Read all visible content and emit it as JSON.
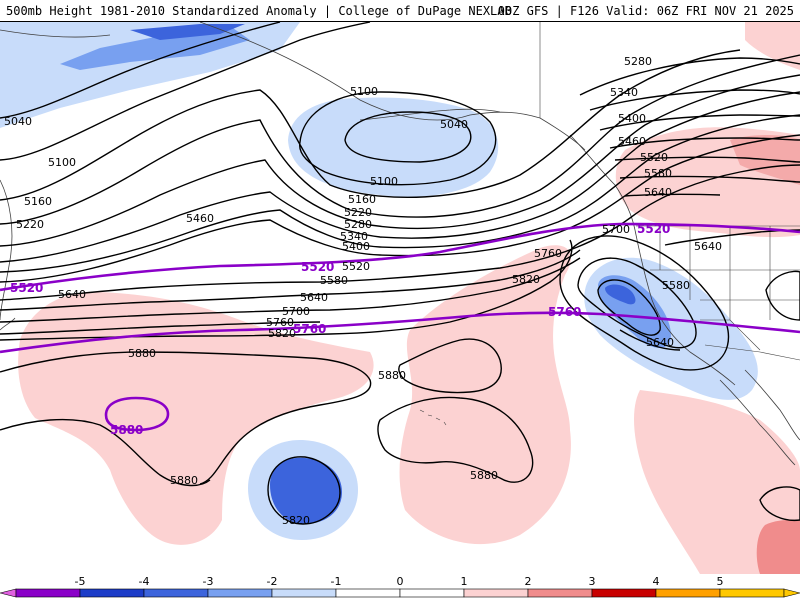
{
  "header": {
    "left_title": "500mb Height 1981-2010 Standardized Anomaly | College of DuPage NEXLAB",
    "right_title": "00Z GFS | F126 Valid: 06Z FRI NOV 21 2025"
  },
  "contour_labels": {
    "c5040_west": "5040",
    "c5040_gulf": "5040",
    "c5100_west": "5100",
    "c5100_gulf_n": "5100",
    "c5100_gulf_s": "5100",
    "c5160_west": "5160",
    "c5160_mid": "5160",
    "c5220_west": "5220",
    "c5220_mid": "5220",
    "c5280_mid": "5280",
    "c5280_ne": "5280",
    "c5340_mid": "5340",
    "c5340_ne": "5340",
    "c5400_mid": "5400",
    "c5400_ne": "5400",
    "c5460_west": "5460",
    "c5460_ne": "5460",
    "c5520_mid": "5520",
    "c5520_ne": "5520",
    "c5580_mid": "5580",
    "c5580_ne": "5580",
    "c5580_low": "5580",
    "c5640_west": "5640",
    "c5640_mid": "5640",
    "c5640_ne": "5640",
    "c5640_land": "5640",
    "c5640_low": "5640",
    "c5700_mid": "5700",
    "c5700_coast": "5700",
    "c5760_mid": "5760",
    "c5760_coast": "5760",
    "c5820_mid": "5820",
    "c5820_center": "5820",
    "c5820_south": "5820",
    "c5880_west": "5880",
    "c5880_center": "5880",
    "c5880_sw": "5880",
    "c5880_se": "5880"
  },
  "highlight_labels": {
    "p5520_west": "5520",
    "p5520_mid": "5520",
    "p5520_east": "5520",
    "p5760_mid": "5760",
    "p5760_east": "5760",
    "p5880_closed": "5880"
  },
  "colorbar": {
    "ticks": [
      "-5",
      "-4",
      "-3",
      "-2",
      "-1",
      "0",
      "1",
      "2",
      "3",
      "4",
      "5"
    ],
    "colors": [
      "#8a00c8",
      "#1c3cc8",
      "#3c64dc",
      "#78a0f0",
      "#c8dcfa",
      "#ffffff",
      "#ffffff",
      "#fcd2d2",
      "#f08c8c",
      "#c80000",
      "#ffa000",
      "#ffc800"
    ],
    "end_left_color": "#e060e0",
    "end_right_color": "#ffc800"
  },
  "colors": {
    "contour": "#000000",
    "highlight_contour": "#8a00c8",
    "coastline": "#404040",
    "neg1": "#c8dcfa",
    "neg2": "#78a0f0",
    "neg3": "#3c64dc",
    "pos1": "#fcd2d2",
    "pos2": "#f4aaaa"
  }
}
